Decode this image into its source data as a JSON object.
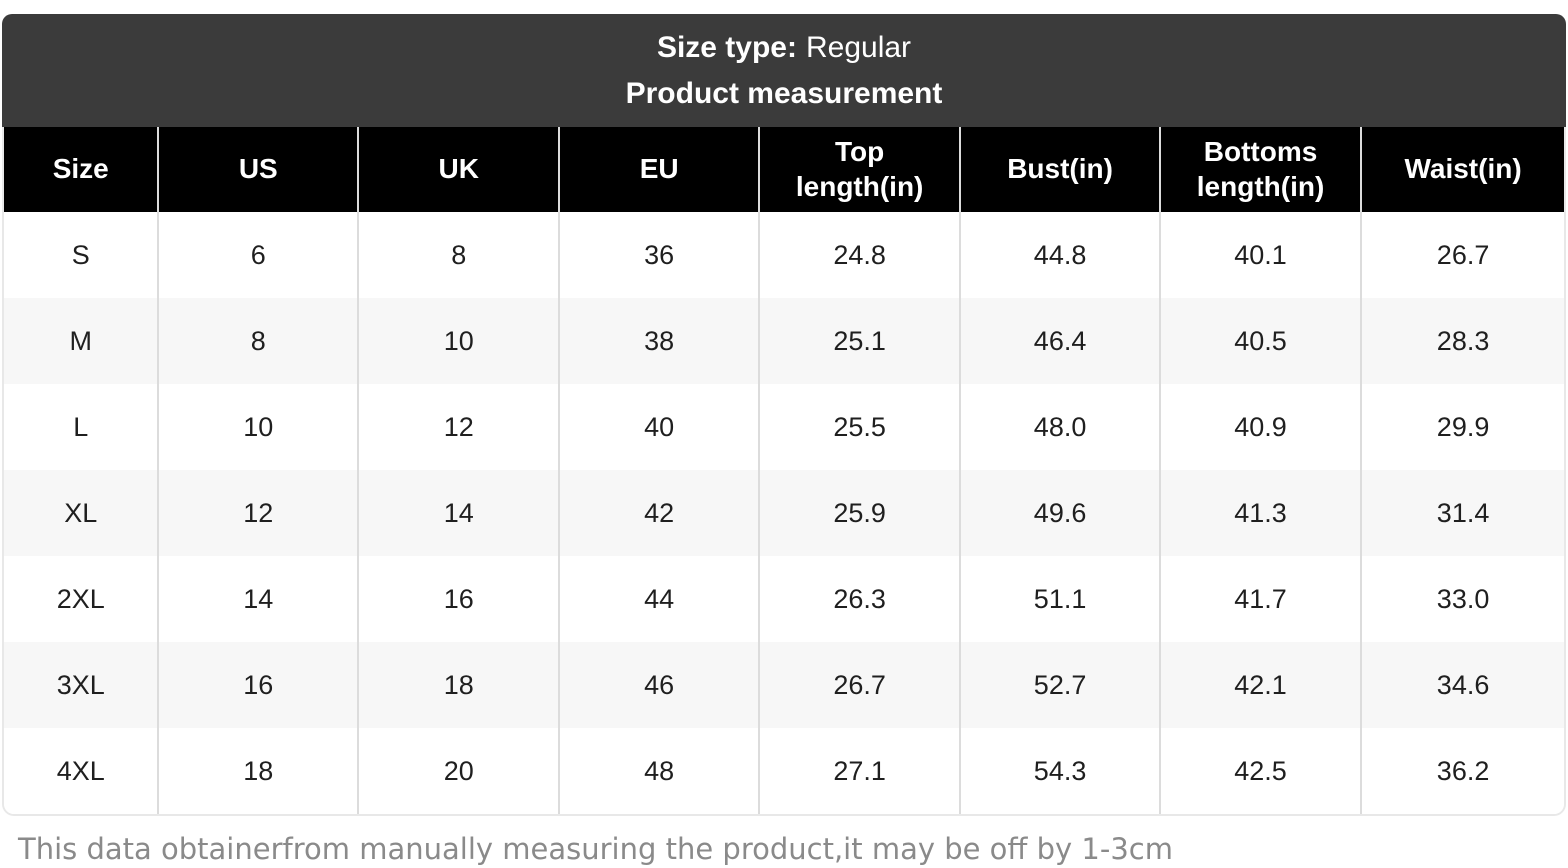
{
  "colors": {
    "card-header-bg": "#3b3b3b",
    "card-header-text": "#ffffff",
    "table-header-bg": "#000000",
    "table-header-text": "#ffffff",
    "row-bg": "#ffffff",
    "stripe-bg": "#f7f7f7",
    "grid-line": "#dcdcdc",
    "grid-outer": "#e8e8e8",
    "cell-text": "#1f1f1f",
    "note-text": "#8a8a8a"
  },
  "header": {
    "size_type_label": "Size type:",
    "size_type_value": "Regular",
    "title": "Product measurement"
  },
  "table": {
    "columns": [
      "Size",
      "US",
      "UK",
      "EU",
      "Top length(in)",
      "Bust(in)",
      "Bottoms length(in)",
      "Waist(in)"
    ],
    "column_widths_pct": [
      9.9,
      12.8,
      12.9,
      12.8,
      12.9,
      12.8,
      12.9,
      13.0
    ],
    "rows": [
      [
        "S",
        "6",
        "8",
        "36",
        "24.8",
        "44.8",
        "40.1",
        "26.7"
      ],
      [
        "M",
        "8",
        "10",
        "38",
        "25.1",
        "46.4",
        "40.5",
        "28.3"
      ],
      [
        "L",
        "10",
        "12",
        "40",
        "25.5",
        "48.0",
        "40.9",
        "29.9"
      ],
      [
        "XL",
        "12",
        "14",
        "42",
        "25.9",
        "49.6",
        "41.3",
        "31.4"
      ],
      [
        "2XL",
        "14",
        "16",
        "44",
        "26.3",
        "51.1",
        "41.7",
        "33.0"
      ],
      [
        "3XL",
        "16",
        "18",
        "46",
        "26.7",
        "52.7",
        "42.1",
        "34.6"
      ],
      [
        "4XL",
        "18",
        "20",
        "48",
        "27.1",
        "54.3",
        "42.5",
        "36.2"
      ]
    ]
  },
  "footer": {
    "note": "This data obtainerfrom manually measuring the product,it may be off by 1-3cm"
  }
}
